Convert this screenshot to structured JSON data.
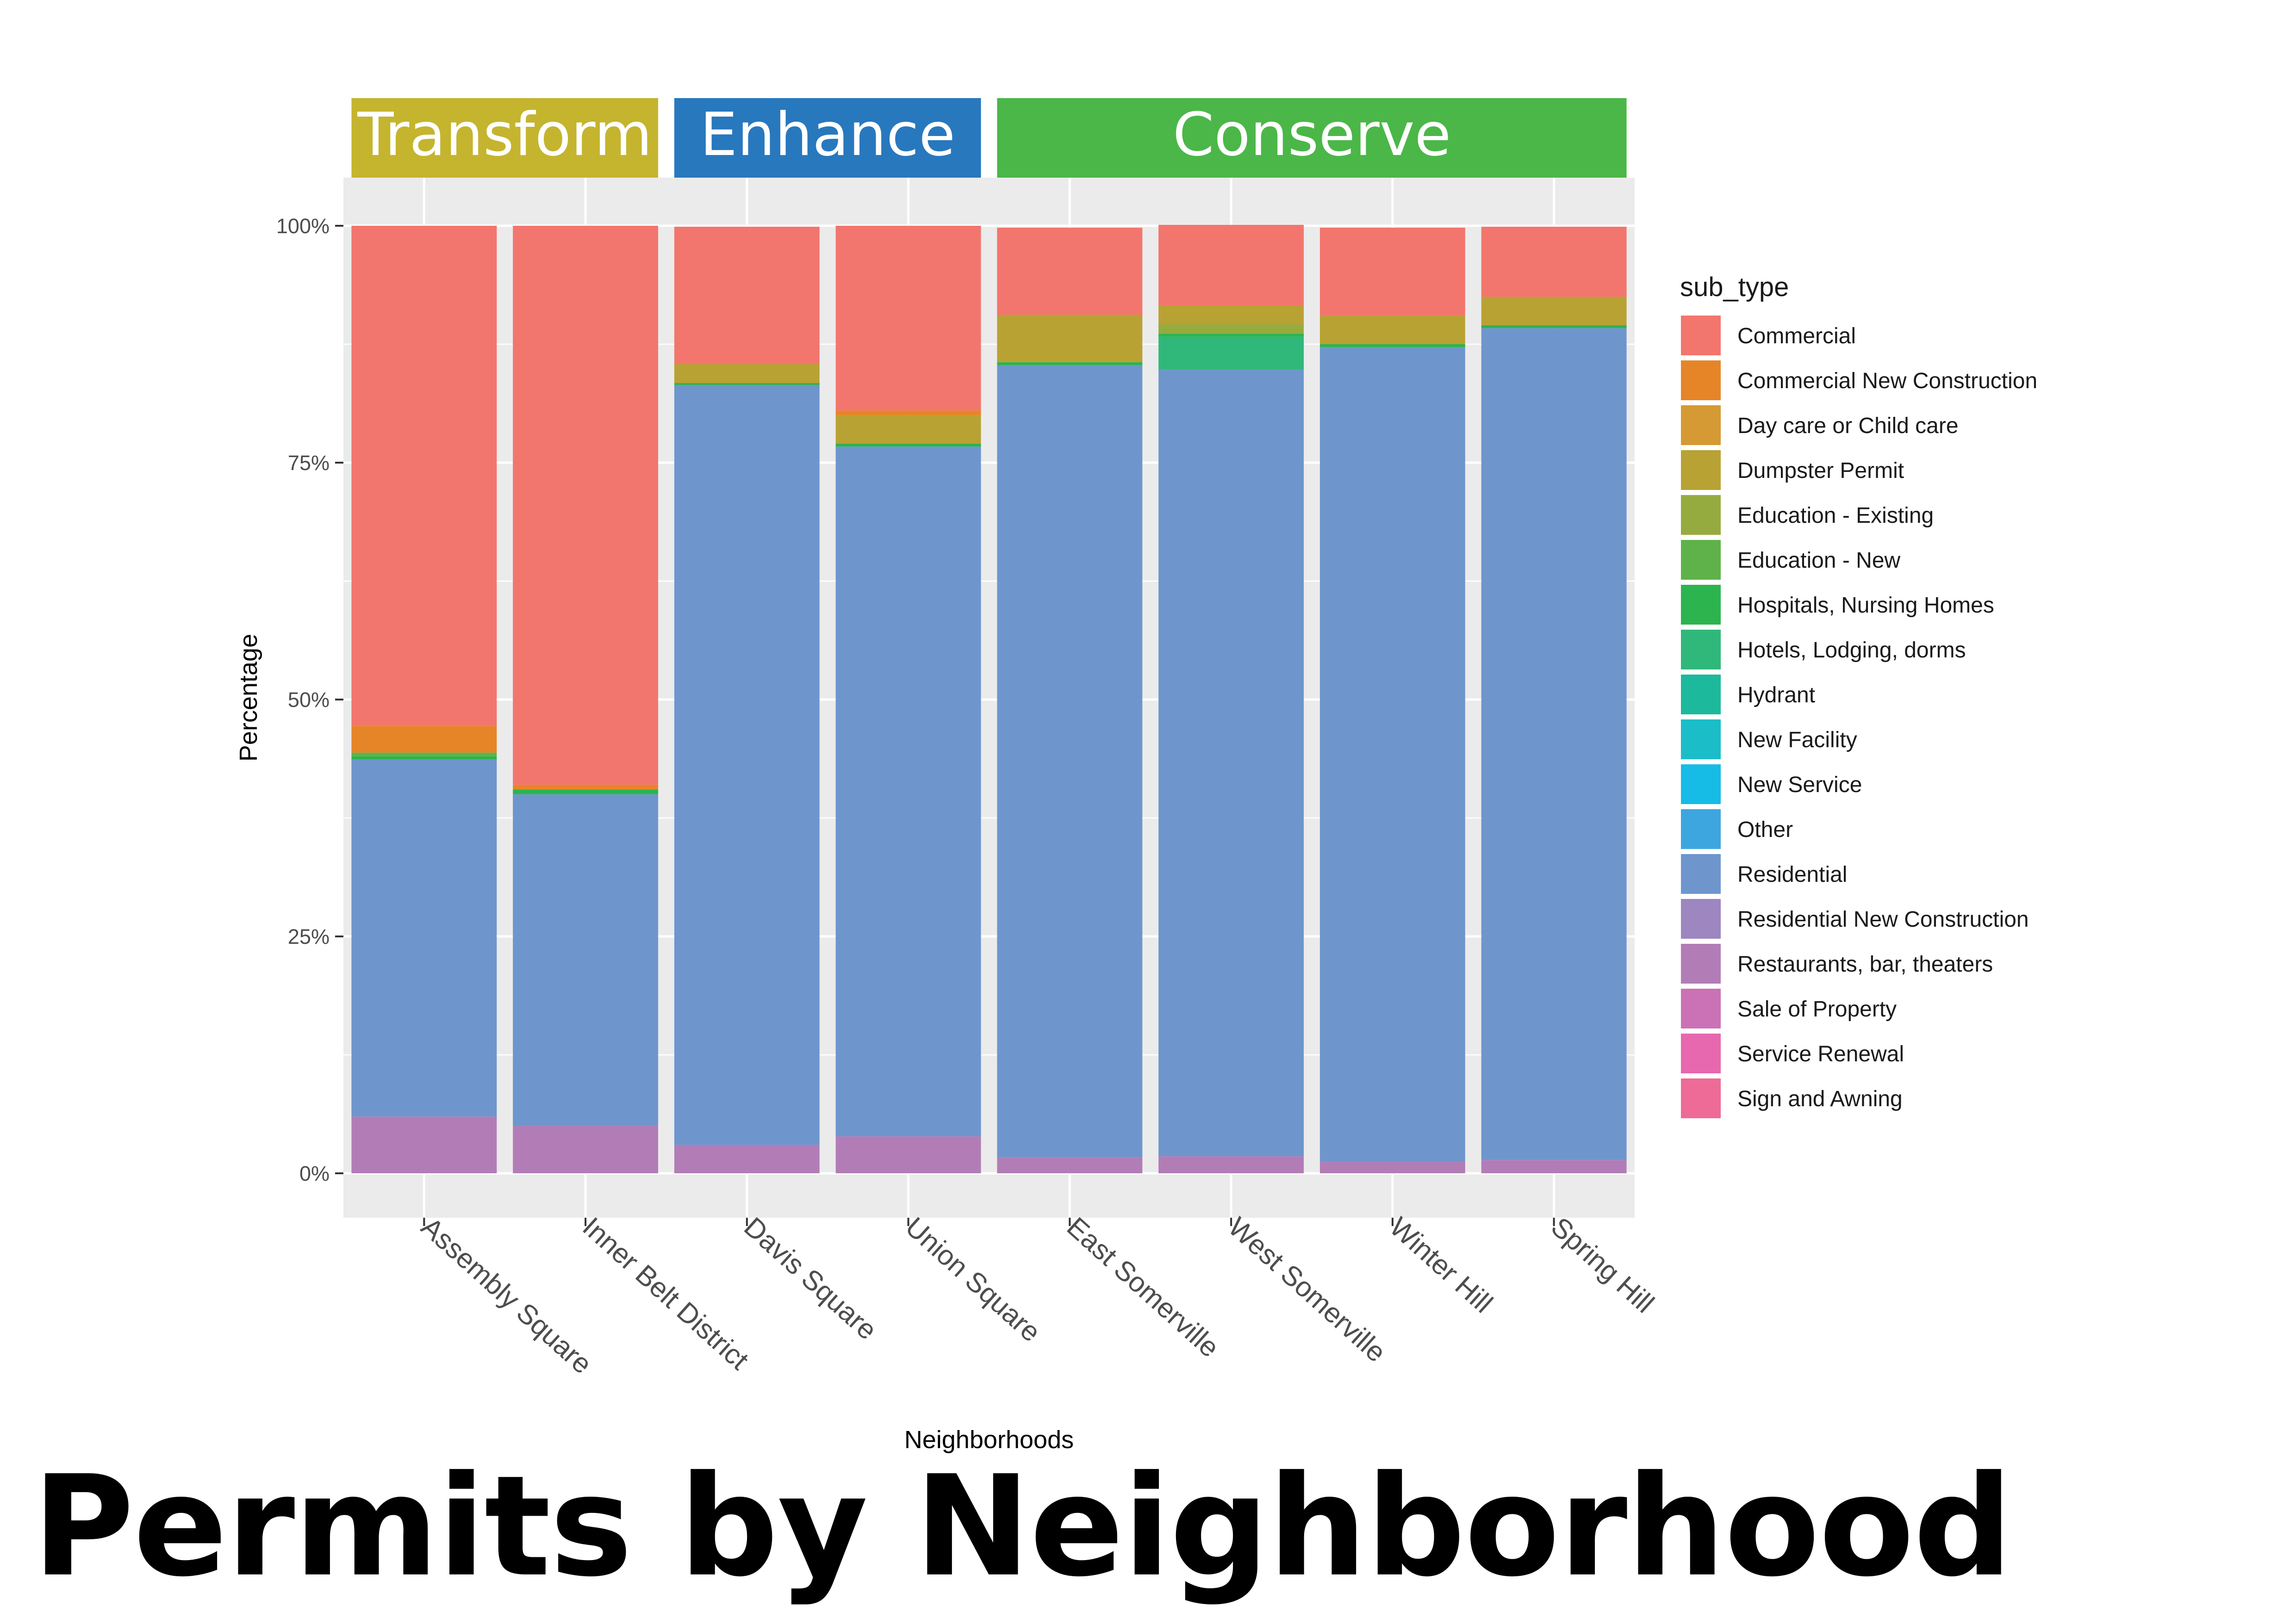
{
  "title": "Permits by Neighborhood",
  "chart_data": {
    "type": "bar",
    "stacked": true,
    "percent": true,
    "xlabel": "Neighborhoods",
    "ylabel": "Percentage",
    "ylim": [
      0,
      100
    ],
    "y_ticks": [
      "0%",
      "25%",
      "50%",
      "75%",
      "100%"
    ],
    "legend_title": "sub_type",
    "legend_position": "right",
    "grid": true,
    "groups": [
      {
        "label": "Transform",
        "color": "#C5B42E",
        "categories": [
          "Assembly Square",
          "Inner Belt District"
        ]
      },
      {
        "label": "Enhance",
        "color": "#2878BE",
        "categories": [
          "Davis Square",
          "Union Square"
        ]
      },
      {
        "label": "Conserve",
        "color": "#4BB748",
        "categories": [
          "East Somerville",
          "West Somerville",
          "Winter Hill",
          "Spring Hill"
        ]
      }
    ],
    "categories": [
      "Assembly Square",
      "Inner Belt District",
      "Davis Square",
      "Union Square",
      "East Somerville",
      "West Somerville",
      "Winter Hill",
      "Spring Hill"
    ],
    "series": [
      {
        "name": "Commercial",
        "color": "#F2766D",
        "values": [
          52.8,
          59.0,
          14.5,
          19.5,
          9.2,
          8.5,
          9.3,
          7.4
        ]
      },
      {
        "name": "Commercial New Construction",
        "color": "#E68528",
        "values": [
          2.8,
          0.5,
          0,
          0.5,
          0,
          0,
          0,
          0
        ]
      },
      {
        "name": "Day care or Child care",
        "color": "#D59A33",
        "values": [
          0,
          0,
          0,
          0,
          0,
          0,
          0,
          0
        ]
      },
      {
        "name": "Dumpster Permit",
        "color": "#B9A234",
        "values": [
          0,
          0,
          2.0,
          3.0,
          5.0,
          2.0,
          3.0,
          3.0
        ]
      },
      {
        "name": "Education - Existing",
        "color": "#96AB3F",
        "values": [
          0,
          0,
          0,
          0,
          0,
          1.0,
          0,
          0
        ]
      },
      {
        "name": "Education - New",
        "color": "#5FB24A",
        "values": [
          0.4,
          0,
          0,
          0,
          0,
          0,
          0,
          0
        ]
      },
      {
        "name": "Hospitals, Nursing Homes",
        "color": "#2CB44F",
        "values": [
          0.3,
          0.5,
          0.2,
          0.3,
          0.3,
          0.3,
          0.3,
          0.3
        ]
      },
      {
        "name": "Hotels, Lodging, dorms",
        "color": "#2FB87A",
        "values": [
          0,
          0,
          0,
          0,
          0,
          3.5,
          0,
          0
        ]
      },
      {
        "name": "Hydrant",
        "color": "#1DB99C",
        "values": [
          0,
          0,
          0,
          0,
          0,
          0,
          0,
          0
        ]
      },
      {
        "name": "New Facility",
        "color": "#1BBDC8",
        "values": [
          0,
          0,
          0,
          0,
          0,
          0,
          0,
          0
        ]
      },
      {
        "name": "New Service",
        "color": "#16BCE5",
        "values": [
          0,
          0,
          0,
          0,
          0,
          0,
          0,
          0
        ]
      },
      {
        "name": "Other",
        "color": "#3EA6DE",
        "values": [
          0,
          0,
          0,
          0,
          0,
          0,
          0,
          0
        ]
      },
      {
        "name": "Residential",
        "color": "#6E96CD",
        "values": [
          37.7,
          35.0,
          80.2,
          72.8,
          83.6,
          83.0,
          86.0,
          87.8
        ]
      },
      {
        "name": "Residential New Construction",
        "color": "#9E86C0",
        "values": [
          0,
          0,
          0,
          0,
          0,
          0,
          0,
          0
        ]
      },
      {
        "name": "Restaurants, bar, theaters",
        "color": "#B27DB7",
        "values": [
          6.0,
          5.0,
          3.0,
          3.9,
          1.7,
          1.8,
          1.2,
          1.4
        ]
      },
      {
        "name": "Sale of Property",
        "color": "#CB71B5",
        "values": [
          0,
          0,
          0,
          0,
          0,
          0,
          0,
          0
        ]
      },
      {
        "name": "Service Renewal",
        "color": "#E768AE",
        "values": [
          0,
          0,
          0,
          0,
          0,
          0,
          0,
          0
        ]
      },
      {
        "name": "Sign and Awning",
        "color": "#EE6B97",
        "values": [
          0,
          0,
          0,
          0,
          0,
          0,
          0,
          0
        ]
      }
    ]
  }
}
